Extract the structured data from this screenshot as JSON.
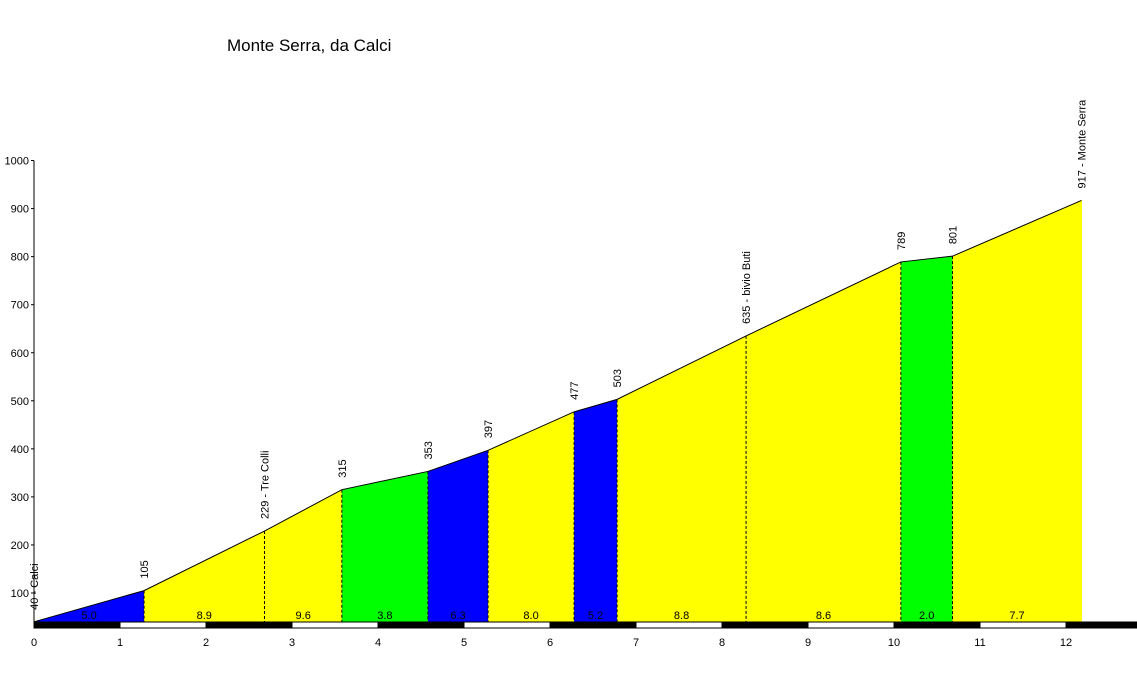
{
  "chart_data": {
    "type": "area",
    "title": "Monte Serra, da Calci",
    "xlabel": "",
    "ylabel": "",
    "xlim": [
      0,
      12.8
    ],
    "ylim": [
      30,
      1000
    ],
    "x_ticks": [
      "0",
      "1",
      "2",
      "3",
      "4",
      "5",
      "6",
      "7",
      "8",
      "9",
      "10",
      "11",
      "12"
    ],
    "y_ticks": [
      "100",
      "200",
      "300",
      "400",
      "500",
      "600",
      "700",
      "800",
      "900",
      "1000"
    ],
    "grid": false,
    "profile": [
      {
        "x": 0,
        "y": 40
      },
      {
        "x": 1.28,
        "y": 105
      },
      {
        "x": 2.68,
        "y": 229
      },
      {
        "x": 3.58,
        "y": 315
      },
      {
        "x": 4.58,
        "y": 353
      },
      {
        "x": 5.28,
        "y": 397
      },
      {
        "x": 6.28,
        "y": 477
      },
      {
        "x": 6.78,
        "y": 503
      },
      {
        "x": 8.28,
        "y": 635
      },
      {
        "x": 10.08,
        "y": 789
      },
      {
        "x": 10.68,
        "y": 801
      },
      {
        "x": 12.18,
        "y": 917
      }
    ],
    "point_labels": [
      {
        "x": 0,
        "text": "40 - Calci"
      },
      {
        "x": 1.28,
        "text": "105"
      },
      {
        "x": 2.68,
        "text": "229 - Tre Colli"
      },
      {
        "x": 3.58,
        "text": "315"
      },
      {
        "x": 4.58,
        "text": "353"
      },
      {
        "x": 5.28,
        "text": "397"
      },
      {
        "x": 6.28,
        "text": "477"
      },
      {
        "x": 6.78,
        "text": "503"
      },
      {
        "x": 8.28,
        "text": "635 - bivio Buti"
      },
      {
        "x": 10.08,
        "text": "789"
      },
      {
        "x": 10.68,
        "text": "801"
      },
      {
        "x": 12.18,
        "text": "917 - Monte Serra"
      }
    ],
    "segments": [
      {
        "x0": 0,
        "x1": 1.28,
        "gradient": "5.0",
        "color": "#0000ff"
      },
      {
        "x0": 1.28,
        "x1": 2.68,
        "gradient": "8.9",
        "color": "#ffff00"
      },
      {
        "x0": 2.68,
        "x1": 3.58,
        "gradient": "9.6",
        "color": "#ffff00"
      },
      {
        "x0": 3.58,
        "x1": 4.58,
        "gradient": "3.8",
        "color": "#00ff00"
      },
      {
        "x0": 4.58,
        "x1": 5.28,
        "gradient": "6.3",
        "color": "#0000ff"
      },
      {
        "x0": 5.28,
        "x1": 6.28,
        "gradient": "8.0",
        "color": "#ffff00"
      },
      {
        "x0": 6.28,
        "x1": 6.78,
        "gradient": "5.2",
        "color": "#0000ff"
      },
      {
        "x0": 6.78,
        "x1": 8.28,
        "gradient": "8.8",
        "color": "#ffff00"
      },
      {
        "x0": 8.28,
        "x1": 10.08,
        "gradient": "8.6",
        "color": "#ffff00"
      },
      {
        "x0": 10.08,
        "x1": 10.68,
        "gradient": "2.0",
        "color": "#00ff00"
      },
      {
        "x0": 10.68,
        "x1": 12.18,
        "gradient": "7.7",
        "color": "#ffff00"
      }
    ],
    "divider_style": "dashed"
  }
}
